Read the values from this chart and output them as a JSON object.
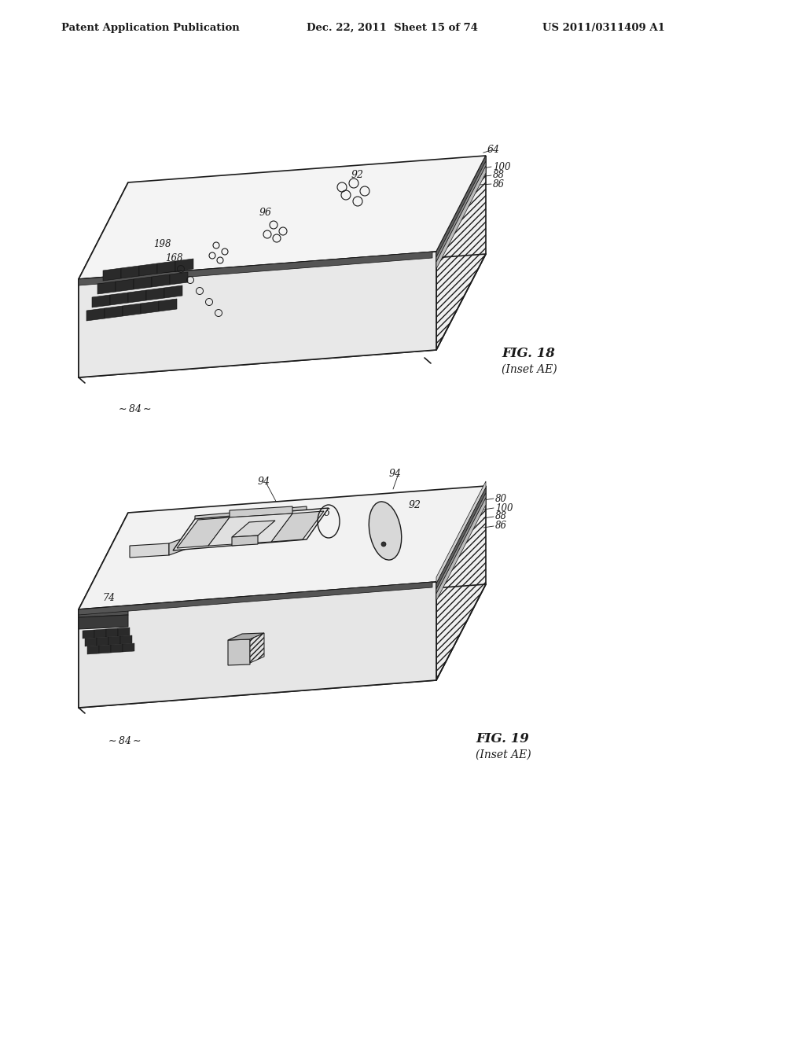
{
  "background_color": "#ffffff",
  "header_left": "Patent Application Publication",
  "header_center": "Dec. 22, 2011  Sheet 15 of 74",
  "header_right": "US 2011/0311409 A1",
  "fig18_title": "FIG. 18",
  "fig18_subtitle": "(Inset AE)",
  "fig19_title": "FIG. 19",
  "fig19_subtitle": "(Inset AE)",
  "line_color": "#1a1a1a",
  "face_light": "#f8f8f8",
  "face_mid": "#ebebeb",
  "face_dark": "#d8d8d8",
  "hatch_pattern": "////",
  "grid_color": "#2a2a2a"
}
